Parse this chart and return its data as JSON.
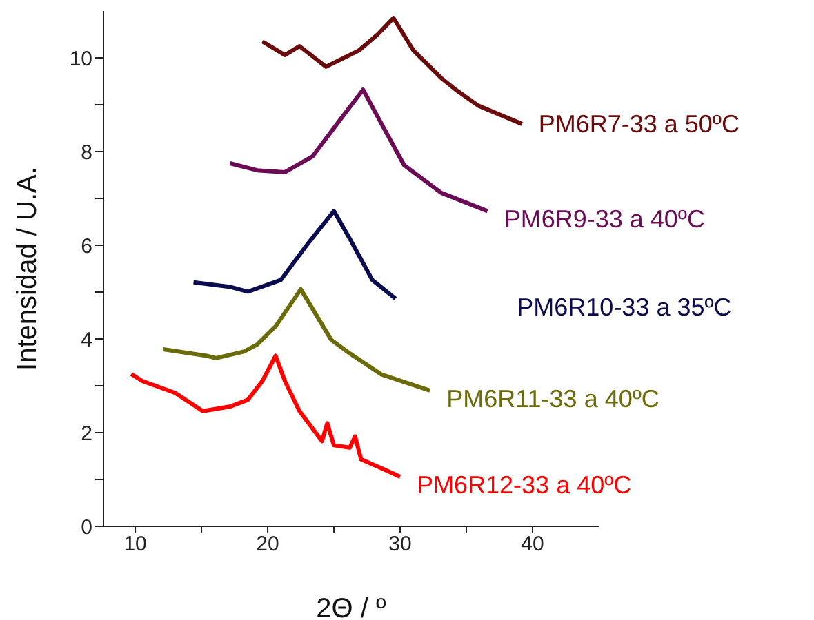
{
  "chart_data": {
    "type": "line",
    "xlabel": "2Θ / º",
    "ylabel": "Intensidad / U.A.",
    "xlim": [
      7.6,
      45
    ],
    "ylim": [
      0,
      11
    ],
    "xticks": [
      10,
      {
        "value": 15,
        "label": null
      },
      20,
      {
        "value": 25,
        "label": null
      },
      30,
      {
        "value": 35,
        "label": null
      },
      40
    ],
    "yticks": [
      0,
      {
        "value": 1,
        "label": null
      },
      2,
      {
        "value": 3,
        "label": null
      },
      4,
      {
        "value": 5,
        "label": null
      },
      6,
      {
        "value": 7,
        "label": null
      },
      8,
      {
        "value": 9,
        "label": null
      },
      10
    ],
    "legend": false,
    "marker": "none",
    "line_style": "solid",
    "series": [
      {
        "name": "PM6R7-33 a 50ºC",
        "color": "#6b0a0a",
        "x": [
          19.6,
          21.3,
          22.4,
          24.4,
          26.9,
          28.3,
          29.5,
          31.0,
          33.1,
          34.2,
          35.9,
          39.2
        ],
        "values": [
          10.35,
          10.06,
          10.25,
          9.81,
          10.16,
          10.5,
          10.85,
          10.16,
          9.57,
          9.32,
          8.98,
          8.59
        ]
      },
      {
        "name": "PM6R9-33 a 40ºC",
        "color": "#6b0a55",
        "x": [
          17.15,
          19.2,
          21.3,
          23.4,
          25.5,
          27.2,
          28.6,
          30.3,
          33.1,
          36.6
        ],
        "values": [
          7.75,
          7.6,
          7.56,
          7.9,
          8.69,
          9.32,
          8.59,
          7.71,
          7.12,
          6.73
        ]
      },
      {
        "name": "PM6R10-33 a 35ºC",
        "color": "#0b0b4f",
        "x": [
          14.4,
          17.2,
          18.5,
          21.0,
          23.05,
          25.0,
          26.2,
          27.9,
          29.65
        ],
        "values": [
          5.21,
          5.11,
          5.01,
          5.26,
          6.04,
          6.73,
          6.14,
          5.26,
          4.86
        ]
      },
      {
        "name": "PM6R11-33 a 40ºC",
        "color": "#6b6b0a",
        "x": [
          12.1,
          15.4,
          16.1,
          18.2,
          19.2,
          20.6,
          22.5,
          24.8,
          26.2,
          28.6,
          32.25
        ],
        "values": [
          3.78,
          3.64,
          3.59,
          3.73,
          3.88,
          4.27,
          5.06,
          3.98,
          3.69,
          3.24,
          2.9
        ]
      },
      {
        "name": "PM6R12-33 a 40ºC",
        "color": "#ff0000",
        "x": [
          9.7,
          10.55,
          13.0,
          15.1,
          17.2,
          18.5,
          19.6,
          20.6,
          21.3,
          22.4,
          24.1,
          24.5,
          25.0,
          26.2,
          26.6,
          27.05,
          28.6,
          30.0
        ],
        "values": [
          3.25,
          3.1,
          2.85,
          2.46,
          2.56,
          2.7,
          3.1,
          3.64,
          3.1,
          2.46,
          1.82,
          2.2,
          1.73,
          1.68,
          1.92,
          1.43,
          1.24,
          1.06
        ]
      }
    ]
  }
}
